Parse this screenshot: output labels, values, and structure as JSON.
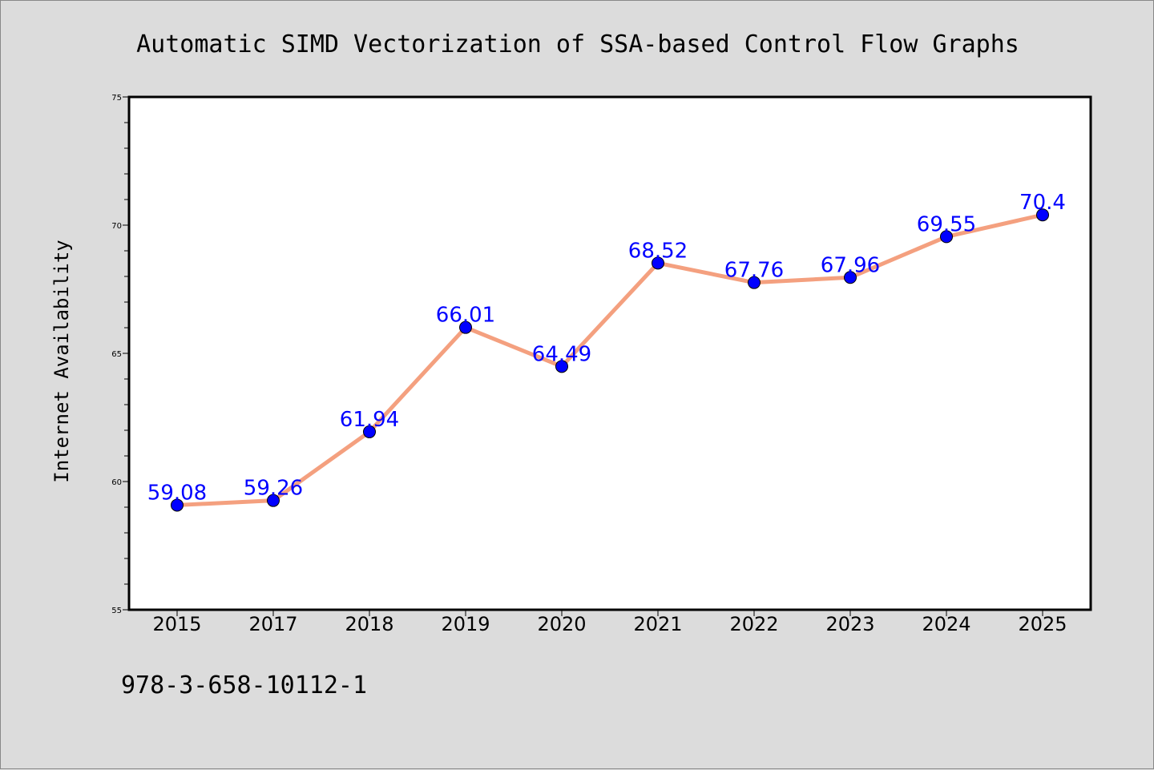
{
  "chart_data": {
    "type": "line",
    "title": "Automatic SIMD Vectorization of SSA-based Control Flow Graphs",
    "xlabel": "",
    "ylabel": "Internet Availability",
    "categories": [
      "2015",
      "2017",
      "2018",
      "2019",
      "2020",
      "2021",
      "2022",
      "2023",
      "2024",
      "2025"
    ],
    "series": [
      {
        "values": [
          59.08,
          59.26,
          61.94,
          66.01,
          64.49,
          68.52,
          67.76,
          67.96,
          69.55,
          70.4
        ],
        "labels": [
          "59.08",
          "59.26",
          "61.94",
          "66.01",
          "64.49",
          "68.52",
          "67.76",
          "67.96",
          "69.55",
          "70.4"
        ]
      }
    ],
    "ylim": [
      55,
      75
    ],
    "yticks": [
      "55",
      "60",
      "65",
      "70",
      "75"
    ],
    "grid": false,
    "legend": "none",
    "colors": {
      "line": "#f4a07f",
      "marker": "#0000ff",
      "label": "#0000ff",
      "background": "#dcdcdc",
      "plot_area": "#ffffff"
    }
  },
  "footer": {
    "isbn": "978-3-658-10112-1"
  }
}
